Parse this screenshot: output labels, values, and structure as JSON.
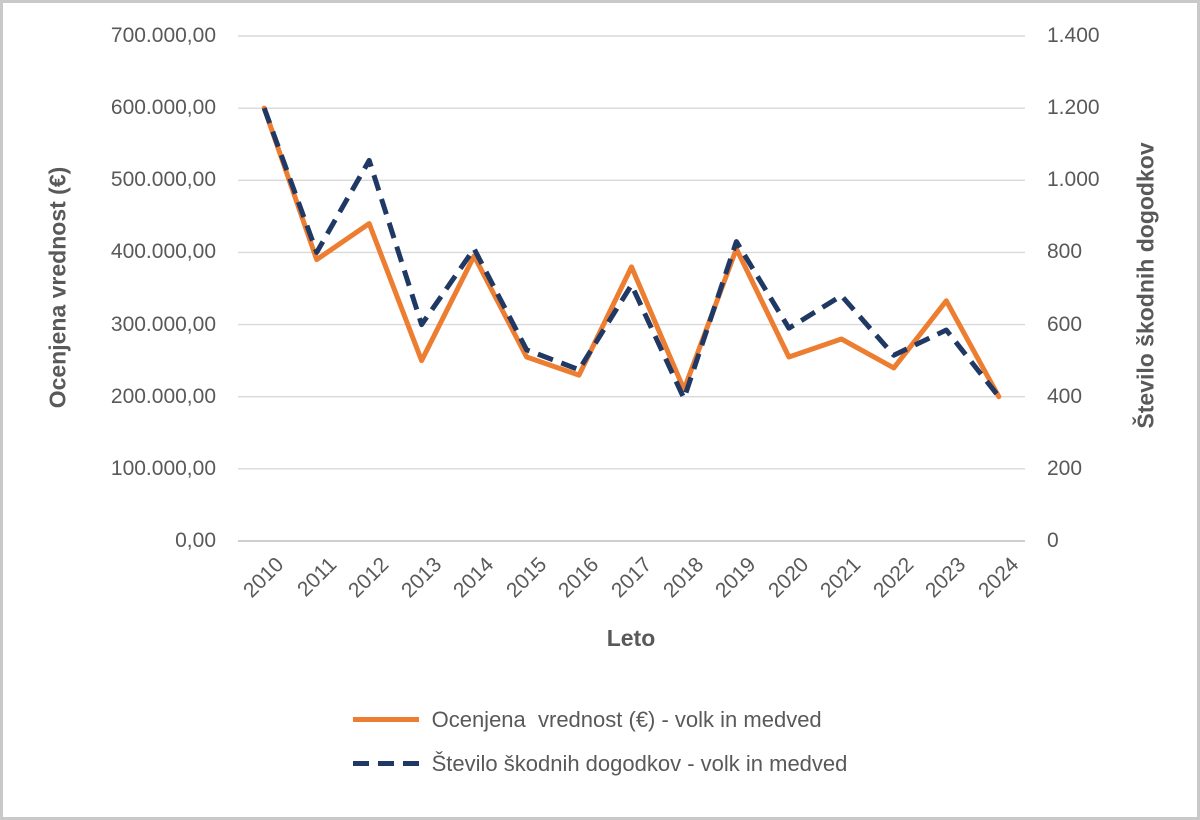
{
  "chart_data": {
    "type": "line",
    "title": "",
    "x_categories": [
      "2010",
      "2011",
      "2012",
      "2013",
      "2014",
      "2015",
      "2016",
      "2017",
      "2018",
      "2019",
      "2020",
      "2021",
      "2022",
      "2023",
      "2024"
    ],
    "xlabel": "Leto",
    "left_axis": {
      "title": "Ocenjena vrednost (€)",
      "min": 0,
      "max": 700000,
      "ticks": [
        "0,00",
        "100.000,00",
        "200.000,00",
        "300.000,00",
        "400.000,00",
        "500.000,00",
        "600.000,00",
        "700.000,00"
      ]
    },
    "right_axis": {
      "title": "Število škodnih dogodkov",
      "min": 0,
      "max": 1400,
      "ticks": [
        "0",
        "200",
        "400",
        "600",
        "800",
        "1.000",
        "1.200",
        "1.400"
      ]
    },
    "grid": true,
    "legend_position": "bottom",
    "series": [
      {
        "name": "Ocenjena  vrednost (€) - volk in medved",
        "axis": "left",
        "color": "#ED7D31",
        "line_style": "solid",
        "values": [
          600000,
          390000,
          440000,
          250000,
          395000,
          255000,
          230000,
          380000,
          210000,
          405000,
          255000,
          280000,
          240000,
          333000,
          200000
        ]
      },
      {
        "name": "Število škodnih dogodkov - volk in medved",
        "axis": "right",
        "color": "#1F3864",
        "line_style": "dashed",
        "values": [
          1200,
          800,
          1055,
          600,
          810,
          530,
          475,
          710,
          395,
          830,
          590,
          680,
          515,
          585,
          400
        ]
      }
    ],
    "colors": {
      "gridline": "#D9D9D9",
      "axis_line": "#BFBFBF",
      "text": "#595959",
      "frame_border": "#C9C9C9",
      "background": "#FFFFFF"
    }
  }
}
